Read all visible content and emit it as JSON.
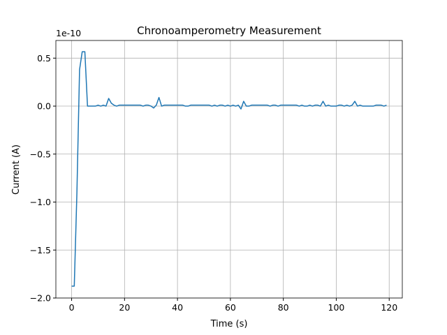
{
  "chart_data": {
    "type": "line",
    "title": "Chronoamperometry Measurement",
    "x_label": "Time (s)",
    "y_label": "Current (A)",
    "y_offset_label": "1e-10",
    "x": [
      0,
      1,
      2,
      3,
      4,
      5,
      6,
      7,
      8,
      9,
      10,
      11,
      12,
      13,
      14,
      15,
      16,
      17,
      18,
      19,
      20,
      21,
      22,
      23,
      24,
      25,
      26,
      27,
      28,
      29,
      30,
      31,
      32,
      33,
      34,
      35,
      36,
      37,
      38,
      39,
      40,
      41,
      42,
      43,
      44,
      45,
      46,
      47,
      48,
      49,
      50,
      51,
      52,
      53,
      54,
      55,
      56,
      57,
      58,
      59,
      60,
      61,
      62,
      63,
      64,
      65,
      66,
      67,
      68,
      69,
      70,
      71,
      72,
      73,
      74,
      75,
      76,
      77,
      78,
      79,
      80,
      81,
      82,
      83,
      84,
      85,
      86,
      87,
      88,
      89,
      90,
      91,
      92,
      93,
      94,
      95,
      96,
      97,
      98,
      99,
      100,
      101,
      102,
      103,
      104,
      105,
      106,
      107,
      108,
      109,
      110,
      111,
      112,
      113,
      114,
      115,
      116,
      117,
      118,
      119
    ],
    "series": [
      {
        "color": "#1f77b4",
        "values": [
          -1.876,
          -1.876,
          -0.9,
          0.38,
          0.567,
          0.567,
          0,
          0,
          0,
          0,
          0.01,
          0,
          0.01,
          0,
          0.08,
          0.03,
          0.01,
          0,
          0.01,
          0.01,
          0.01,
          0.01,
          0.01,
          0.01,
          0.01,
          0.01,
          0.01,
          0,
          0.01,
          0.01,
          0,
          -0.02,
          0.01,
          0.09,
          0,
          0.01,
          0.01,
          0.01,
          0.01,
          0.01,
          0.01,
          0.01,
          0.01,
          0,
          0,
          0.01,
          0.01,
          0.01,
          0.01,
          0.01,
          0.01,
          0.01,
          0.01,
          0,
          0.01,
          0,
          0.01,
          0.01,
          0,
          0.01,
          0,
          0.01,
          0,
          0.01,
          -0.03,
          0.05,
          0,
          0,
          0.01,
          0.01,
          0.01,
          0.01,
          0.01,
          0.01,
          0.01,
          0,
          0.01,
          0.01,
          0,
          0.01,
          0.01,
          0.01,
          0.01,
          0.01,
          0.01,
          0.01,
          0,
          0.01,
          0,
          0,
          0.01,
          0,
          0.01,
          0.01,
          0,
          0.05,
          0,
          0.01,
          0,
          0,
          0,
          0.01,
          0.01,
          0,
          0.01,
          0,
          0.01,
          0.05,
          0,
          0.01,
          0,
          0,
          0,
          0,
          0,
          0.01,
          0.01,
          0.01,
          0,
          0.01
        ]
      }
    ],
    "xlim": [
      -5.95,
      124.95
    ],
    "ylim": [
      -2.0,
      0.684
    ],
    "xticks": [
      0,
      20,
      40,
      60,
      80,
      100,
      120
    ],
    "yticks": [
      {
        "value": -2.0,
        "label": "−2.0"
      },
      {
        "value": -1.5,
        "label": "−1.5"
      },
      {
        "value": -1.0,
        "label": "−1.0"
      },
      {
        "value": -0.5,
        "label": "−0.5"
      },
      {
        "value": 0.0,
        "label": "0.0"
      },
      {
        "value": 0.5,
        "label": "0.5"
      }
    ],
    "grid": true
  }
}
